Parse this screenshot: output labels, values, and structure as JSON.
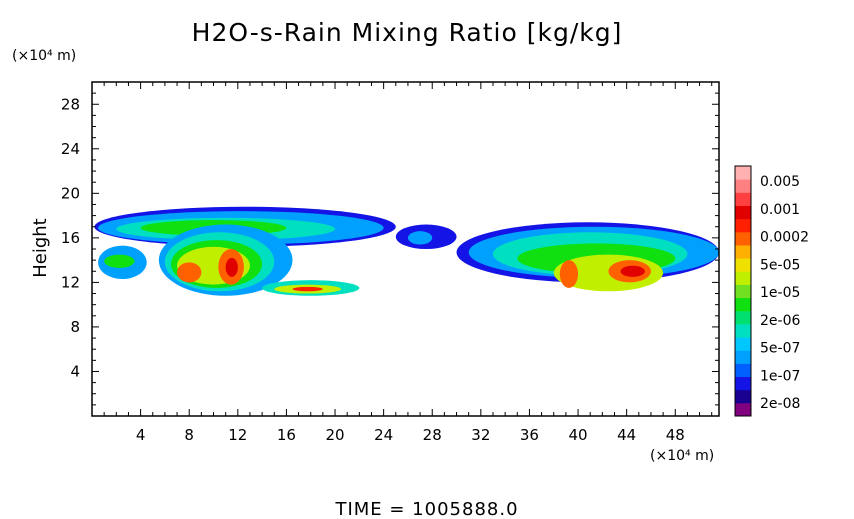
{
  "chart_data": {
    "type": "heatmap",
    "title": "H2O-s-Rain Mixing Ratio [kg/kg]",
    "ylabel": "Height",
    "y_unit": "(×10⁴ m)",
    "x_unit": "(×10⁴ m)",
    "footer": "TIME = 1005888.0",
    "xlim": [
      0,
      51.6
    ],
    "ylim": [
      0,
      30
    ],
    "x_ticks": [
      4,
      8,
      12,
      16,
      20,
      24,
      28,
      32,
      36,
      40,
      44,
      48
    ],
    "y_ticks": [
      4,
      8,
      12,
      16,
      20,
      24,
      28
    ],
    "grid": false,
    "colorbar": {
      "labels": [
        "0.005",
        "0.001",
        "0.0002",
        "5e-05",
        "1e-05",
        "2e-06",
        "5e-07",
        "1e-07",
        "2e-08"
      ],
      "colors": [
        "#800080",
        "#1a0090",
        "#1414e6",
        "#0060ff",
        "#00a0ff",
        "#00c8ff",
        "#00e0c0",
        "#00e070",
        "#10e010",
        "#70e020",
        "#c0f000",
        "#f0e000",
        "#ffb000",
        "#ff6000",
        "#ff2000",
        "#e00000",
        "#ff4040",
        "#ff8080",
        "#ffb0b0"
      ]
    },
    "regions": [
      {
        "x": [
          0.2,
          25
        ],
        "y": [
          15.2,
          18.8
        ],
        "level": 2
      },
      {
        "x": [
          0.5,
          24
        ],
        "y": [
          15.4,
          18.4
        ],
        "level": 4
      },
      {
        "x": [
          2,
          20
        ],
        "y": [
          15.8,
          17.8
        ],
        "level": 6
      },
      {
        "x": [
          4,
          16
        ],
        "y": [
          16.2,
          17.6
        ],
        "level": 8
      },
      {
        "x": [
          0.5,
          4.5
        ],
        "y": [
          12.3,
          15.3
        ],
        "level": 4
      },
      {
        "x": [
          1,
          3.5
        ],
        "y": [
          13.3,
          14.5
        ],
        "level": 8
      },
      {
        "x": [
          5.5,
          16.5
        ],
        "y": [
          10.8,
          17.2
        ],
        "level": 4
      },
      {
        "x": [
          6,
          15
        ],
        "y": [
          11.2,
          16.5
        ],
        "level": 6
      },
      {
        "x": [
          6.5,
          14
        ],
        "y": [
          11.5,
          15.8
        ],
        "level": 8
      },
      {
        "x": [
          7,
          13
        ],
        "y": [
          11.8,
          15.2
        ],
        "level": 10
      },
      {
        "x": [
          7,
          9
        ],
        "y": [
          12.0,
          13.8
        ],
        "level": 13
      },
      {
        "x": [
          10.4,
          12.5
        ],
        "y": [
          11.8,
          15.0
        ],
        "level": 13
      },
      {
        "x": [
          11,
          12
        ],
        "y": [
          12.5,
          14.2
        ],
        "level": 15
      },
      {
        "x": [
          14,
          22
        ],
        "y": [
          10.8,
          12.2
        ],
        "level": 6
      },
      {
        "x": [
          15,
          20.5
        ],
        "y": [
          11.0,
          11.8
        ],
        "level": 10
      },
      {
        "x": [
          16.5,
          19
        ],
        "y": [
          11.2,
          11.6
        ],
        "level": 14
      },
      {
        "x": [
          25,
          30
        ],
        "y": [
          15.0,
          17.2
        ],
        "level": 2
      },
      {
        "x": [
          26,
          28
        ],
        "y": [
          15.4,
          16.6
        ],
        "level": 4
      },
      {
        "x": [
          30,
          51.6
        ],
        "y": [
          12.0,
          17.4
        ],
        "level": 2
      },
      {
        "x": [
          31,
          51.6
        ],
        "y": [
          12.4,
          17.0
        ],
        "level": 4
      },
      {
        "x": [
          33,
          49
        ],
        "y": [
          12.6,
          16.5
        ],
        "level": 6
      },
      {
        "x": [
          35,
          48
        ],
        "y": [
          12.8,
          15.5
        ],
        "level": 8
      },
      {
        "x": [
          38,
          47
        ],
        "y": [
          11.2,
          14.5
        ],
        "level": 10
      },
      {
        "x": [
          38.5,
          40
        ],
        "y": [
          11.5,
          14.0
        ],
        "level": 13
      },
      {
        "x": [
          42.5,
          46
        ],
        "y": [
          12.0,
          14.0
        ],
        "level": 13
      },
      {
        "x": [
          43.5,
          45.5
        ],
        "y": [
          12.5,
          13.5
        ],
        "level": 15
      }
    ]
  }
}
